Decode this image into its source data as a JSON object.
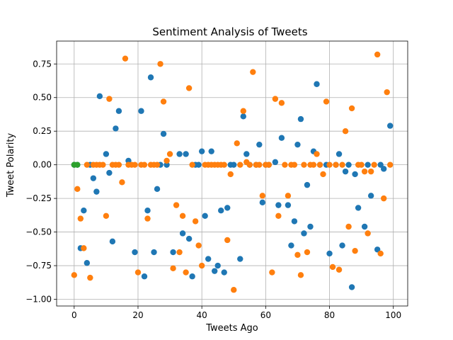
{
  "chart_data": {
    "type": "scatter",
    "title": "Sentiment Analysis of Tweets",
    "xlabel": "Tweets Ago",
    "ylabel": "Tweet Polarity",
    "xlim": [
      -5.5,
      104.5
    ],
    "ylim": [
      -1.05,
      0.92
    ],
    "xticks": [
      0,
      20,
      40,
      60,
      80,
      100
    ],
    "yticks": [
      -1.0,
      -0.75,
      -0.5,
      -0.25,
      0.0,
      0.25,
      0.5,
      0.75
    ],
    "ytick_labels": [
      "−1.00",
      "−0.75",
      "−0.50",
      "−0.25",
      "0.00",
      "0.25",
      "0.50",
      "0.75"
    ],
    "grid": true,
    "legend": "none",
    "series": [
      {
        "color": "#1f77b4",
        "points": [
          [
            0,
            0
          ],
          [
            1,
            0
          ],
          [
            2,
            -0.62
          ],
          [
            3,
            -0.34
          ],
          [
            4,
            -0.73
          ],
          [
            5,
            0
          ],
          [
            6,
            -0.1
          ],
          [
            7,
            -0.2
          ],
          [
            8,
            0.51
          ],
          [
            10,
            0.08
          ],
          [
            11,
            -0.06
          ],
          [
            12,
            -0.57
          ],
          [
            13,
            0.27
          ],
          [
            14,
            0.4
          ],
          [
            17,
            0.03
          ],
          [
            19,
            -0.65
          ],
          [
            21,
            0.4
          ],
          [
            22,
            -0.83
          ],
          [
            23,
            -0.34
          ],
          [
            24,
            0.65
          ],
          [
            25,
            -0.65
          ],
          [
            26,
            -0.18
          ],
          [
            27,
            0
          ],
          [
            28,
            0.23
          ],
          [
            29,
            0
          ],
          [
            31,
            -0.65
          ],
          [
            33,
            0.08
          ],
          [
            34,
            -0.51
          ],
          [
            35,
            0.08
          ],
          [
            36,
            -0.55
          ],
          [
            37,
            -0.83
          ],
          [
            38,
            0
          ],
          [
            39,
            0
          ],
          [
            40,
            0.1
          ],
          [
            41,
            -0.38
          ],
          [
            42,
            -0.7
          ],
          [
            43,
            0.1
          ],
          [
            44,
            -0.79
          ],
          [
            45,
            -0.75
          ],
          [
            46,
            -0.34
          ],
          [
            47,
            -0.8
          ],
          [
            48,
            -0.32
          ],
          [
            49,
            0
          ],
          [
            50,
            0
          ],
          [
            52,
            -0.7
          ],
          [
            53,
            0.36
          ],
          [
            54,
            0.08
          ],
          [
            55,
            0
          ],
          [
            57,
            0
          ],
          [
            58,
            0.15
          ],
          [
            59,
            -0.28
          ],
          [
            60,
            0
          ],
          [
            61,
            0
          ],
          [
            63,
            0.02
          ],
          [
            64,
            -0.3
          ],
          [
            65,
            0.2
          ],
          [
            67,
            -0.3
          ],
          [
            68,
            -0.6
          ],
          [
            69,
            -0.42
          ],
          [
            70,
            0.15
          ],
          [
            71,
            0.34
          ],
          [
            72,
            -0.51
          ],
          [
            73,
            -0.15
          ],
          [
            74,
            -0.46
          ],
          [
            75,
            0.1
          ],
          [
            76,
            0.6
          ],
          [
            77,
            0
          ],
          [
            79,
            0
          ],
          [
            80,
            -0.66
          ],
          [
            82,
            0
          ],
          [
            83,
            0.08
          ],
          [
            84,
            -0.6
          ],
          [
            85,
            -0.05
          ],
          [
            86,
            0
          ],
          [
            87,
            -0.91
          ],
          [
            88,
            -0.07
          ],
          [
            89,
            -0.32
          ],
          [
            91,
            -0.46
          ],
          [
            92,
            0
          ],
          [
            93,
            -0.23
          ],
          [
            95,
            -0.63
          ],
          [
            96,
            0
          ],
          [
            97,
            -0.03
          ],
          [
            99,
            0.29
          ]
        ]
      },
      {
        "color": "#ff7f0e",
        "points": [
          [
            0,
            -0.82
          ],
          [
            1,
            -0.18
          ],
          [
            2,
            -0.4
          ],
          [
            3,
            -0.62
          ],
          [
            4,
            0
          ],
          [
            5,
            -0.84
          ],
          [
            6,
            0
          ],
          [
            7,
            0
          ],
          [
            8,
            0
          ],
          [
            9,
            0
          ],
          [
            10,
            -0.38
          ],
          [
            11,
            0.49
          ],
          [
            12,
            0
          ],
          [
            13,
            0
          ],
          [
            14,
            0
          ],
          [
            15,
            -0.13
          ],
          [
            16,
            0.79
          ],
          [
            17,
            0
          ],
          [
            18,
            0
          ],
          [
            19,
            0
          ],
          [
            20,
            -0.8
          ],
          [
            21,
            0
          ],
          [
            22,
            0
          ],
          [
            23,
            -0.4
          ],
          [
            24,
            0
          ],
          [
            25,
            0
          ],
          [
            26,
            0
          ],
          [
            27,
            0.75
          ],
          [
            28,
            0.47
          ],
          [
            29,
            0.03
          ],
          [
            30,
            0.08
          ],
          [
            31,
            -0.77
          ],
          [
            32,
            -0.3
          ],
          [
            33,
            -0.65
          ],
          [
            34,
            -0.38
          ],
          [
            35,
            -0.8
          ],
          [
            36,
            0.57
          ],
          [
            37,
            0
          ],
          [
            38,
            -0.42
          ],
          [
            39,
            -0.6
          ],
          [
            40,
            -0.75
          ],
          [
            41,
            0
          ],
          [
            42,
            0
          ],
          [
            43,
            0
          ],
          [
            44,
            0
          ],
          [
            45,
            0
          ],
          [
            46,
            0
          ],
          [
            47,
            0
          ],
          [
            48,
            -0.56
          ],
          [
            49,
            -0.07
          ],
          [
            50,
            -0.93
          ],
          [
            51,
            0.16
          ],
          [
            52,
            0
          ],
          [
            53,
            0.4
          ],
          [
            54,
            0.02
          ],
          [
            55,
            0
          ],
          [
            56,
            0.69
          ],
          [
            57,
            0
          ],
          [
            58,
            0
          ],
          [
            59,
            -0.23
          ],
          [
            60,
            0
          ],
          [
            61,
            0
          ],
          [
            62,
            -0.8
          ],
          [
            63,
            0.49
          ],
          [
            64,
            -0.38
          ],
          [
            65,
            0.46
          ],
          [
            66,
            0
          ],
          [
            67,
            -0.23
          ],
          [
            68,
            0
          ],
          [
            69,
            0
          ],
          [
            70,
            -0.67
          ],
          [
            71,
            -0.82
          ],
          [
            72,
            0
          ],
          [
            73,
            -0.65
          ],
          [
            74,
            0
          ],
          [
            75,
            0
          ],
          [
            76,
            0.08
          ],
          [
            77,
            0
          ],
          [
            78,
            -0.07
          ],
          [
            79,
            0.47
          ],
          [
            80,
            0
          ],
          [
            81,
            -0.76
          ],
          [
            82,
            0
          ],
          [
            83,
            -0.78
          ],
          [
            84,
            0
          ],
          [
            85,
            0.25
          ],
          [
            86,
            -0.46
          ],
          [
            87,
            0.42
          ],
          [
            88,
            -0.64
          ],
          [
            89,
            0
          ],
          [
            90,
            0
          ],
          [
            91,
            -0.05
          ],
          [
            92,
            -0.51
          ],
          [
            93,
            -0.05
          ],
          [
            94,
            0
          ],
          [
            95,
            0.82
          ],
          [
            96,
            -0.66
          ],
          [
            97,
            -0.25
          ],
          [
            98,
            0.54
          ],
          [
            99,
            0
          ]
        ]
      },
      {
        "color": "#2ca02c",
        "points": [
          [
            0,
            0
          ],
          [
            1,
            0
          ]
        ]
      }
    ]
  }
}
